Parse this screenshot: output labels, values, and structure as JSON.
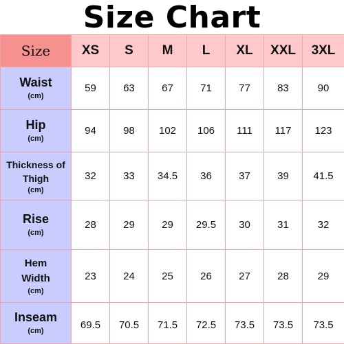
{
  "title": "Size Chart",
  "corner_label": "Size",
  "sizes": [
    "XS",
    "S",
    "M",
    "L",
    "XL",
    "XXL",
    "3XL"
  ],
  "rows": [
    {
      "label": "Waist",
      "unit": "(cm)",
      "values": [
        "59",
        "63",
        "67",
        "71",
        "77",
        "83",
        "90"
      ]
    },
    {
      "label": "Hip",
      "unit": "(cm)",
      "values": [
        "94",
        "98",
        "102",
        "106",
        "111",
        "117",
        "123"
      ]
    },
    {
      "label": "Thickness of Thigh",
      "unit": "(cm)",
      "values": [
        "32",
        "33",
        "34.5",
        "36",
        "37",
        "39",
        "41.5"
      ]
    },
    {
      "label": "Rise",
      "unit": "(cm)",
      "values": [
        "28",
        "29",
        "29",
        "29.5",
        "30",
        "31",
        "32"
      ]
    },
    {
      "label": "Hem Width",
      "unit": "(cm)",
      "values": [
        "23",
        "24",
        "25",
        "26",
        "27",
        "28",
        "29"
      ]
    },
    {
      "label": "Inseam",
      "unit": "(cm)",
      "values": [
        "69.5",
        "70.5",
        "71.5",
        "72.5",
        "73.5",
        "73.5",
        "73.5"
      ]
    }
  ],
  "colors": {
    "corner_bg": "#f6918f",
    "header_bg": "#fdc9cb",
    "row_header_bg": "#c8cdfd",
    "border": "#f0a4a8"
  }
}
